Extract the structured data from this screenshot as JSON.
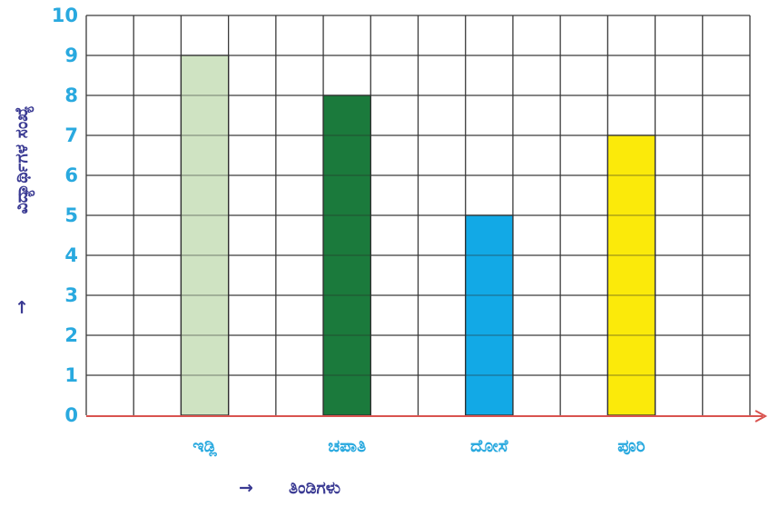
{
  "chart_data": {
    "type": "bar",
    "categories": [
      "ಇಡ್ಲಿ",
      "ಚಪಾತಿ",
      "ದೋಸೆ",
      "ಪೂರಿ"
    ],
    "values": [
      9,
      8,
      5,
      7
    ],
    "xlabel": "ತಿಂಡಿಗಳು",
    "ylabel": "ವಿದ್ಯಾರ್ಥಿಗಳ ಸಂಖ್ಯೆ",
    "ylim": [
      0,
      10
    ],
    "yticks": [
      0,
      1,
      2,
      3,
      4,
      5,
      6,
      7,
      8,
      9,
      10
    ],
    "grid": true,
    "bar_colors": [
      "#cfe3c2",
      "#1b7a3c",
      "#12a9e6",
      "#fbea0a"
    ],
    "tick_color": "#29a9df",
    "label_color": "#3a3a93",
    "axis_color": "#d9534f",
    "arrow_symbol": "→"
  }
}
